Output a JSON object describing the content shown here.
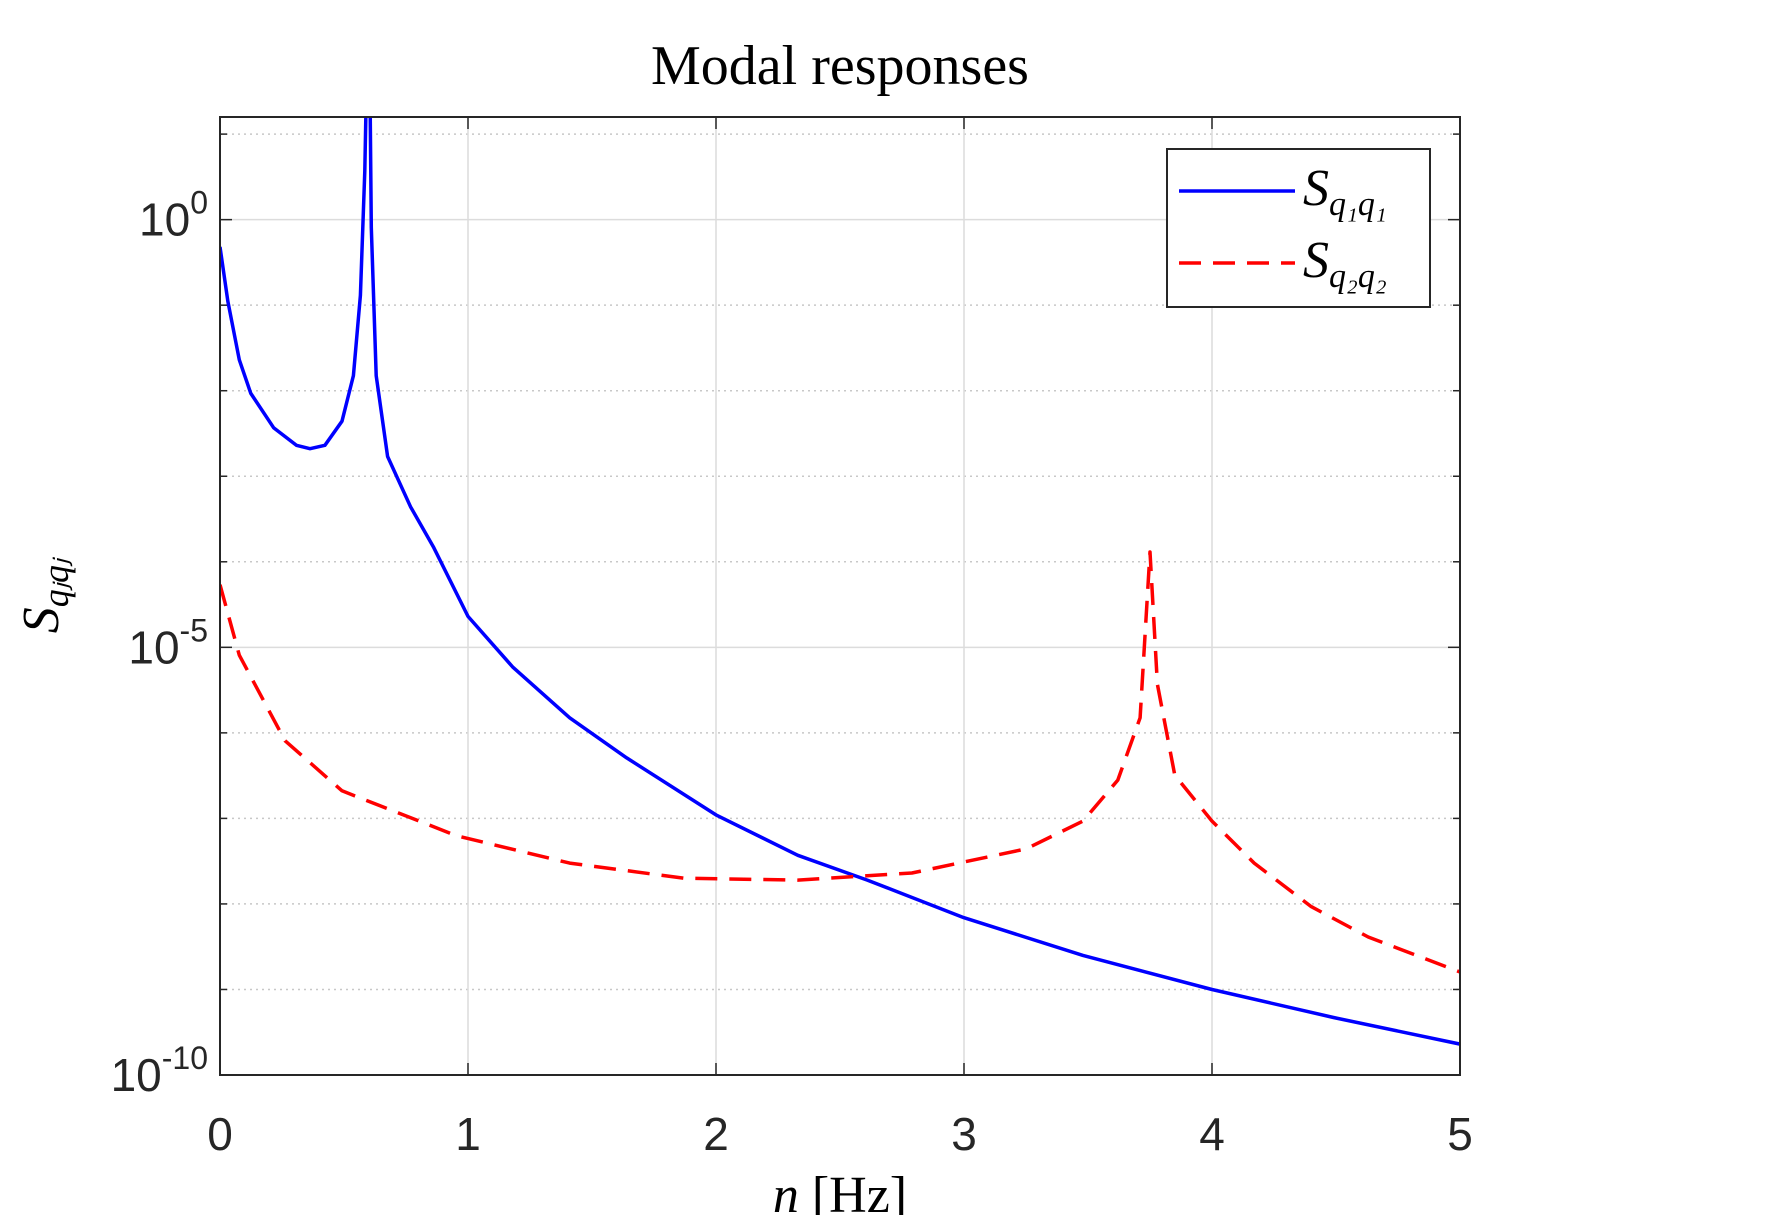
{
  "chart_data": {
    "type": "line",
    "title": "Modal responses",
    "xlabel": "n [Hz]",
    "ylabel": "Sqⱼqⱼ",
    "xlim": [
      0,
      5
    ],
    "xticks": [
      0,
      1,
      2,
      3,
      4,
      5
    ],
    "ylim": [
      1e-10,
      15.85
    ],
    "log_y": true,
    "grid": true,
    "legend": "upper right",
    "yticks": [
      {
        "value": 1e-10,
        "label": "10^-10"
      },
      {
        "value": 1e-05,
        "label": "10^-5"
      },
      {
        "value": 1,
        "label": "10^0"
      }
    ],
    "yminorticks": [
      1e-09,
      1e-08,
      1e-07,
      1e-06,
      0.0001,
      0.001,
      0.01,
      0.1,
      10
    ],
    "series": [
      {
        "name": "Sq₁q₁",
        "color": "#0000ff",
        "dash": "solid",
        "x": [
          0,
          0.032,
          0.078,
          0.124,
          0.216,
          0.308,
          0.363,
          0.423,
          0.492,
          0.538,
          0.566,
          0.584,
          0.6,
          0.61,
          0.63,
          0.676,
          0.768,
          0.86,
          1.0,
          1.18,
          1.41,
          1.64,
          2.0,
          2.33,
          2.61,
          3.0,
          3.48,
          4.0,
          4.49,
          5.0
        ],
        "values": [
          0.48,
          0.11,
          0.023,
          0.0093,
          0.0037,
          0.0023,
          0.0021,
          0.0023,
          0.0044,
          0.015,
          0.13,
          3.7,
          1000,
          0.81,
          0.015,
          0.0017,
          0.00044,
          0.00015,
          2.3e-05,
          5.9e-06,
          1.5e-06,
          5.1e-07,
          1.1e-07,
          3.7e-08,
          1.9e-08,
          6.9e-09,
          2.5e-09,
          1e-09,
          4.7e-10,
          2.3e-10
        ]
      },
      {
        "name": "Sq₂q₂",
        "color": "#ff0000",
        "dash": "dashed",
        "x": [
          0,
          0.078,
          0.262,
          0.492,
          0.952,
          1.41,
          1.87,
          2.33,
          2.79,
          3.25,
          3.48,
          3.62,
          3.71,
          3.75,
          3.78,
          3.85,
          4.0,
          4.17,
          4.4,
          4.63,
          5.0
        ],
        "values": [
          5.4e-05,
          8.1e-06,
          8.1e-07,
          2.1e-07,
          6.3e-08,
          3e-08,
          2e-08,
          1.9e-08,
          2.3e-08,
          4.4e-08,
          9.3e-08,
          2.8e-07,
          1.5e-06,
          0.00013,
          3.7e-06,
          3.2e-07,
          9.3e-08,
          3e-08,
          9.3e-09,
          4.1e-09,
          1.6e-09
        ]
      }
    ]
  }
}
